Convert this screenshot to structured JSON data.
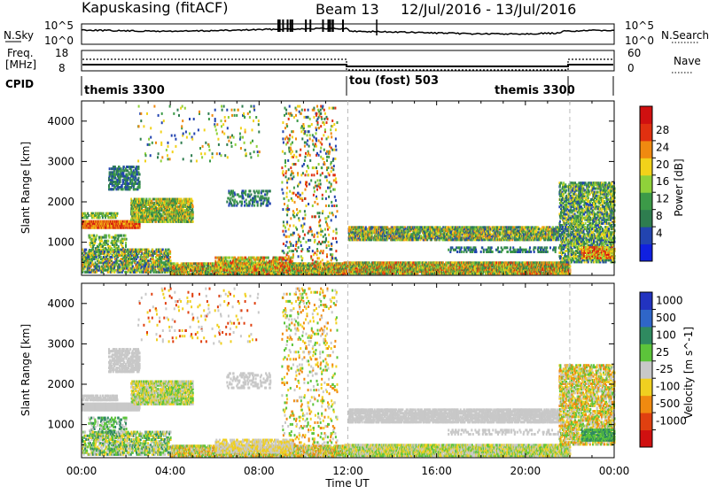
{
  "header": {
    "site": "Kapuskasing (fitACF)",
    "beam": "Beam 13",
    "dates": "12/Jul/2016 - 13/Jul/2016"
  },
  "top_panels": {
    "nsky": {
      "label": "N.Sky",
      "tick_hi": "10^5",
      "tick_lo": "10^0"
    },
    "nsearch": {
      "label": "N.Search",
      "tick_hi": "10^5",
      "tick_lo": "10^0"
    },
    "freq": {
      "label_1": "Freq.",
      "label_2": "[MHz]",
      "tick_hi": "18",
      "tick_lo": "8"
    },
    "nave": {
      "label": "Nave",
      "tick_hi": "60",
      "tick_lo": "0"
    },
    "cpid": {
      "label": "CPID",
      "segments": [
        "themis 3300",
        "tou (fost) 503",
        "themis 3300"
      ]
    }
  },
  "colors": {
    "power": [
      "#1020e0",
      "#2244b0",
      "#2e7d4f",
      "#3c9a48",
      "#8fd13a",
      "#f2d21a",
      "#f08a10",
      "#e03010",
      "#d01010"
    ],
    "velocity": [
      "#2233c0",
      "#2f66c8",
      "#2f8a60",
      "#5cc43a",
      "#c8c8c8",
      "#f0d020",
      "#f08a10",
      "#e04010",
      "#d01010"
    ]
  },
  "chart_data": [
    {
      "type": "heatmap",
      "title": "Power",
      "ylabel": "Slant Range [km]",
      "xlabel": "",
      "xlim": [
        "00:00",
        "00:00"
      ],
      "ylim": [
        180,
        4500
      ],
      "x_tick_labels": [
        "00:00",
        "04:00",
        "08:00",
        "12:00",
        "16:00",
        "20:00",
        "00:00"
      ],
      "y_tick_labels": [
        "1000",
        "2000",
        "3000",
        "4000"
      ],
      "colorbar_label": "Power [dB]",
      "colorbar_ticks": [
        "4",
        "8",
        "12",
        "16",
        "20",
        "24",
        "28"
      ],
      "mode_changes_hours": [
        12,
        22
      ]
    },
    {
      "type": "heatmap",
      "title": "Velocity",
      "ylabel": "Slant Range [km]",
      "xlabel": "Time UT",
      "xlim": [
        "00:00",
        "00:00"
      ],
      "ylim": [
        180,
        4500
      ],
      "x_tick_labels": [
        "00:00",
        "04:00",
        "08:00",
        "12:00",
        "16:00",
        "20:00",
        "00:00"
      ],
      "y_tick_labels": [
        "1000",
        "2000",
        "3000",
        "4000"
      ],
      "colorbar_label": "Velocity [m s^-1]",
      "colorbar_ticks": [
        "1000",
        "500",
        "100",
        "25",
        "-25",
        "-100",
        "-500",
        "-1000"
      ],
      "mode_changes_hours": [
        12,
        22
      ]
    }
  ]
}
